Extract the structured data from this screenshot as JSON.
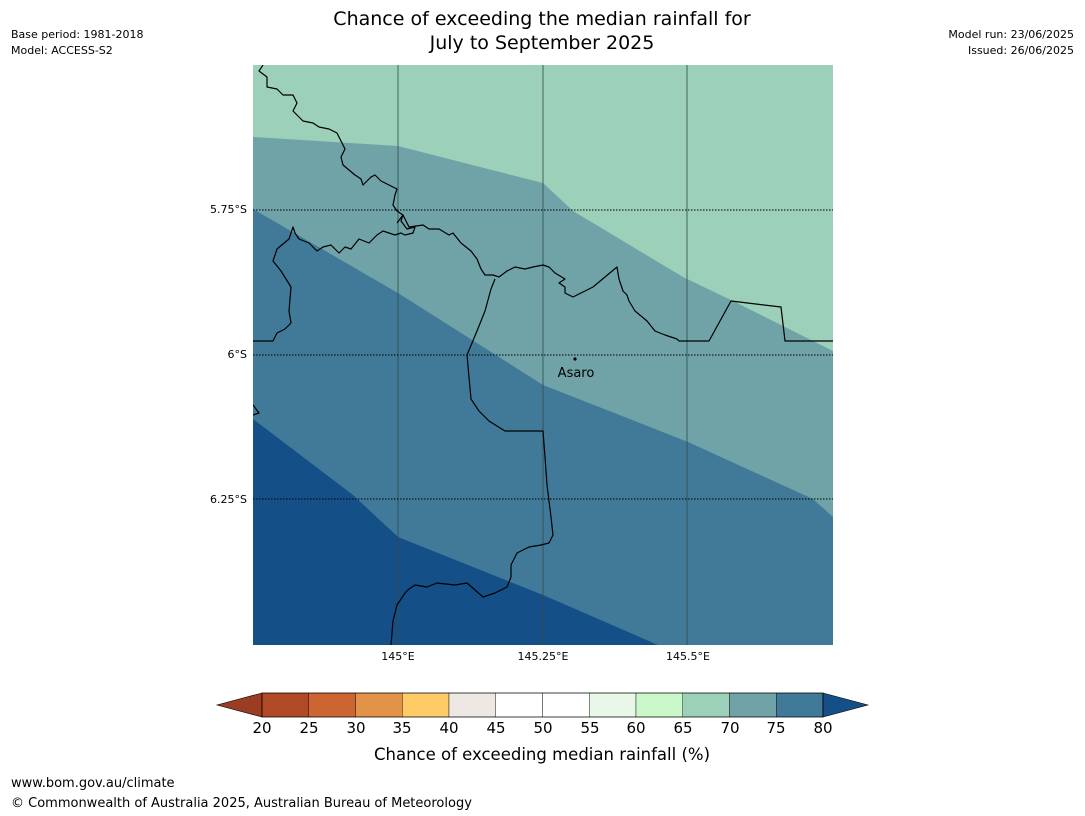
{
  "header": {
    "title_line1": "Chance of exceeding the median rainfall for",
    "title_line2": "July to September 2025",
    "base_period": "Base period: 1981-2018",
    "model": "Model: ACCESS-S2",
    "model_run": "Model run: 23/06/2025",
    "issued": "Issued: 26/06/2025"
  },
  "map": {
    "latitude_labels": [
      "5.75°S",
      "6°S",
      "6.25°S"
    ],
    "longitude_labels": [
      "145°E",
      "145.25°E",
      "145.5°E"
    ],
    "place_label": "Asaro",
    "probability_bands_pct": [
      "65-70",
      "70-75",
      "75-80",
      ">80"
    ],
    "colors": {
      "band_65_70": "#9dd0b9",
      "band_70_75": "#6fa3a8",
      "band_75_80": "#417a99",
      "band_over_80": "#154f88",
      "border": "#000000"
    }
  },
  "colorbar": {
    "label": "Chance of exceeding median rainfall (%)",
    "ticks": [
      "20",
      "25",
      "30",
      "35",
      "40",
      "45",
      "50",
      "55",
      "60",
      "65",
      "70",
      "75",
      "80"
    ],
    "colors": [
      "#b04a26",
      "#cc6532",
      "#e29347",
      "#fecb67",
      "#ede8e4",
      "#ffffff",
      "#ffffff",
      "#e9f7e9",
      "#caf8ca",
      "#9dd0b9",
      "#6fa3a8",
      "#417a99"
    ],
    "under_color": "#9b3d22",
    "over_color": "#154f88"
  },
  "footer": {
    "url": "www.bom.gov.au/climate",
    "copyright": "© Commonwealth of Australia 2025, Australian Bureau of Meteorology"
  }
}
